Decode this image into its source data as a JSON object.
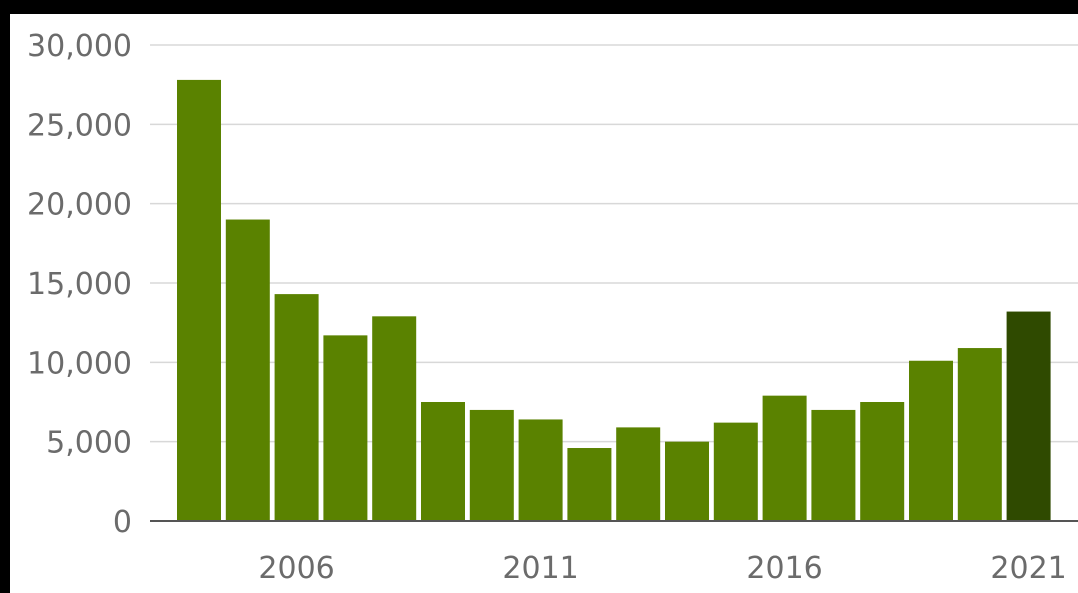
{
  "chart_data": {
    "type": "bar",
    "title": "",
    "xlabel": "",
    "ylabel": "",
    "categories": [
      "2004",
      "2005",
      "2006",
      "2007",
      "2008",
      "2009",
      "2010",
      "2011",
      "2012",
      "2013",
      "2014",
      "2015",
      "2016",
      "2017",
      "2018",
      "2019",
      "2020",
      "2021"
    ],
    "values": [
      27800,
      19000,
      14300,
      11700,
      12900,
      7500,
      7000,
      6400,
      4600,
      5900,
      5000,
      6200,
      7900,
      7000,
      7500,
      10100,
      10900,
      13200
    ],
    "x_tick_labels": [
      "2006",
      "2011",
      "2016",
      "2021"
    ],
    "y_ticks": [
      0,
      5000,
      10000,
      15000,
      20000,
      25000,
      30000
    ],
    "y_tick_labels": [
      "0",
      "5,000",
      "10,000",
      "15,000",
      "20,000",
      "25,000",
      "30,000"
    ],
    "ylim": [
      0,
      30000
    ],
    "grid": true,
    "legend": "none",
    "colors": {
      "bar": "#5a8200",
      "highlight_bar": "#2f4a00",
      "highlight_category": "2021"
    }
  }
}
